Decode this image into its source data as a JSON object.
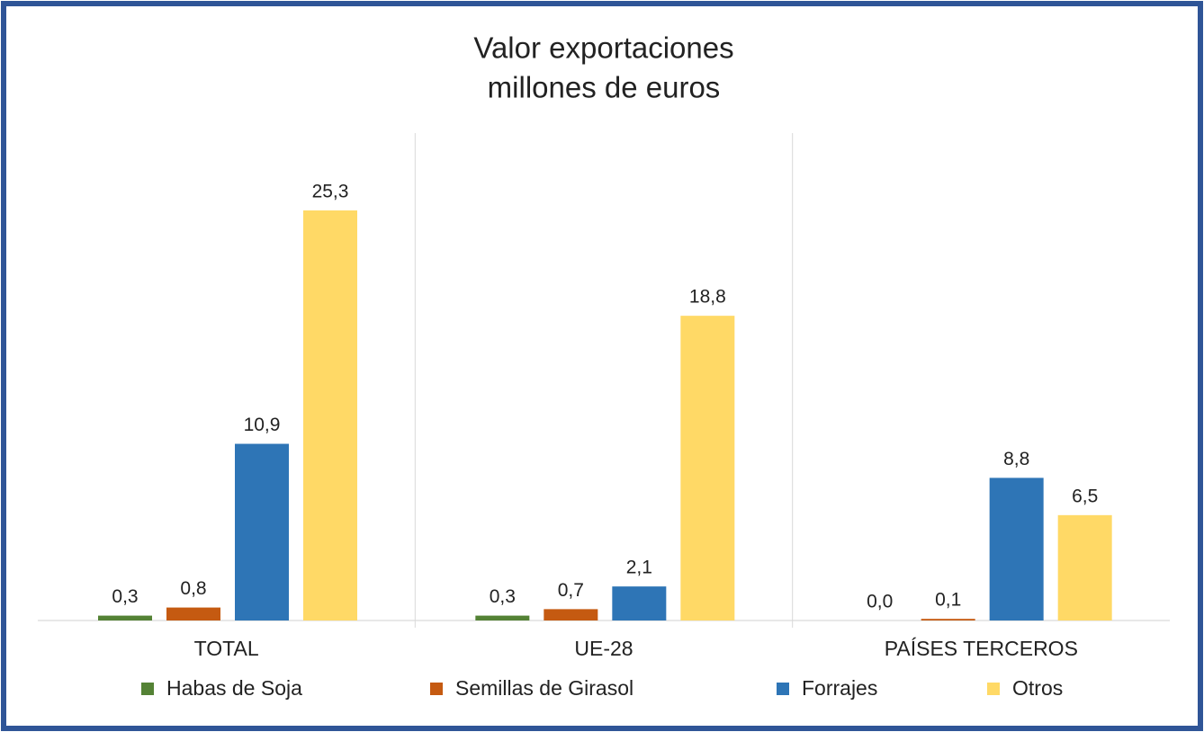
{
  "chart_data": {
    "type": "bar",
    "title": "Valor exportaciones",
    "subtitle": "millones de euros",
    "categories": [
      "TOTAL",
      "UE-28",
      "PAÍSES TERCEROS"
    ],
    "series": [
      {
        "name": "Habas de Soja",
        "color": "#548235",
        "values": [
          0.3,
          0.3,
          0.0
        ],
        "value_labels": [
          "0,3",
          "0,3",
          "0,0"
        ]
      },
      {
        "name": "Semillas de Girasol",
        "color": "#c55a11",
        "values": [
          0.8,
          0.7,
          0.1
        ],
        "value_labels": [
          "0,8",
          "0,7",
          "0,1"
        ]
      },
      {
        "name": "Forrajes",
        "color": "#2e75b6",
        "values": [
          10.9,
          2.1,
          8.8
        ],
        "value_labels": [
          "10,9",
          "2,1",
          "8,8"
        ]
      },
      {
        "name": "Otros",
        "color": "#ffd966",
        "values": [
          25.3,
          18.8,
          6.5
        ],
        "value_labels": [
          "25,3",
          "18,8",
          "6,5"
        ]
      }
    ],
    "legend": "bottom"
  }
}
